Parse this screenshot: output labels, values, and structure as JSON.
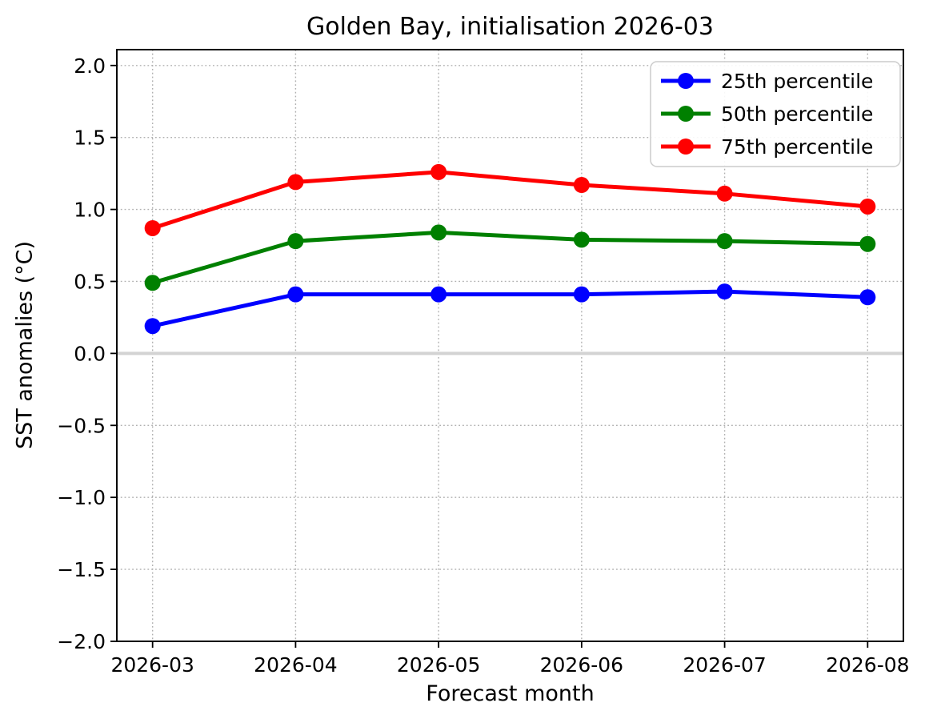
{
  "chart_data": {
    "type": "line",
    "title": "Golden Bay, initialisation 2026-03",
    "xlabel": "Forecast month",
    "ylabel": "SST anomalies (°C)",
    "categories": [
      "2026-03",
      "2026-04",
      "2026-05",
      "2026-06",
      "2026-07",
      "2026-08"
    ],
    "series": [
      {
        "name": "25th percentile",
        "color": "#0000ff",
        "values": [
          0.19,
          0.41,
          0.41,
          0.41,
          0.43,
          0.39
        ]
      },
      {
        "name": "50th percentile",
        "color": "#008000",
        "values": [
          0.49,
          0.78,
          0.84,
          0.79,
          0.78,
          0.76
        ]
      },
      {
        "name": "75th percentile",
        "color": "#ff0000",
        "values": [
          0.87,
          1.19,
          1.26,
          1.17,
          1.11,
          1.02
        ]
      }
    ],
    "yticks": [
      2.0,
      1.5,
      1.0,
      0.5,
      0.0,
      -0.5,
      -1.0,
      -1.5,
      -2.0
    ],
    "ytick_labels": [
      "2.0",
      "1.5",
      "1.0",
      "0.5",
      "0.0",
      "−0.5",
      "−1.0",
      "−1.5",
      "−2.0"
    ],
    "ylim": [
      -2.0,
      2.11
    ],
    "grid": true,
    "legend_position": "upper right",
    "zero_line": {
      "y": 0.0,
      "color": "#d3d3d3"
    },
    "grid_color": "#b0b0b0",
    "axis_color": "#000000",
    "legend_border_color": "#cccccc"
  }
}
